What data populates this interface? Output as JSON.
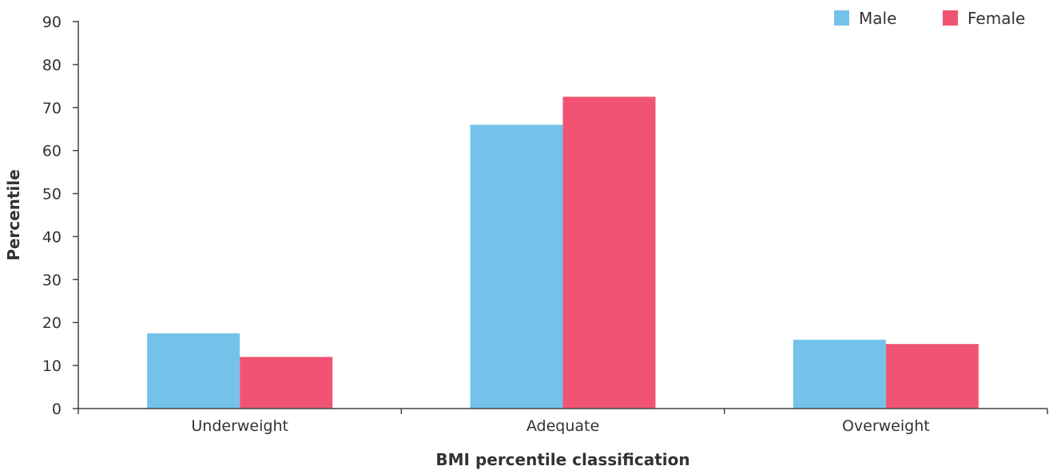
{
  "chart_data": {
    "type": "bar",
    "categories": [
      "Underweight",
      "Adequate",
      "Overweight"
    ],
    "series": [
      {
        "name": "Male",
        "values": [
          17.5,
          66,
          16
        ],
        "color": "#74C2EA"
      },
      {
        "name": "Female",
        "values": [
          12,
          72.5,
          15
        ],
        "color": "#F05472"
      }
    ],
    "title": "",
    "xlabel": "BMI percentile classification",
    "ylabel": "Percentile",
    "ylim": [
      0,
      90
    ],
    "yticks": [
      0,
      10,
      20,
      30,
      40,
      50,
      60,
      70,
      80,
      90
    ],
    "grid": false,
    "legend_position": "top-right"
  }
}
